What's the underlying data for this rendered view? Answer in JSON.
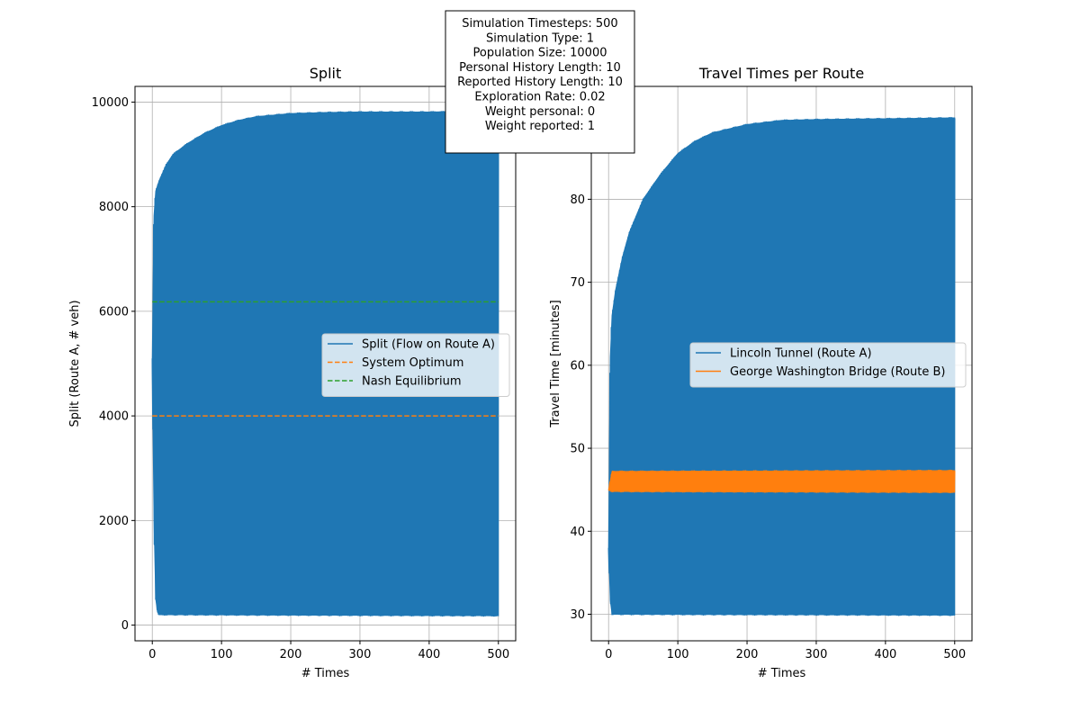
{
  "info_box": {
    "lines": [
      "Simulation Timesteps: 500",
      "Simulation Type: 1",
      "Population Size: 10000",
      "Personal History Length: 10",
      "Reported History Length: 10",
      "Exploration Rate: 0.02",
      "Weight personal: 0",
      "Weight reported: 1"
    ]
  },
  "colors": {
    "blue": "#1f77b4",
    "orange": "#ff7f0e",
    "green": "#2ca02c",
    "grid": "#b0b0b0"
  },
  "chart_data": [
    {
      "type": "line",
      "title": "Split",
      "xlabel": "# Times",
      "ylabel": "Split (Route A, # veh)",
      "xlim": [
        -25,
        525
      ],
      "ylim": [
        -300,
        10300
      ],
      "xticks": [
        0,
        100,
        200,
        300,
        400,
        500
      ],
      "yticks": [
        0,
        2000,
        4000,
        6000,
        8000,
        10000
      ],
      "grid": true,
      "legend_position": "center-right",
      "oscillating_series": {
        "name": "Split (Flow on Route A)",
        "x_range": [
          0,
          500
        ],
        "upper_envelope": [
          [
            0,
            5100
          ],
          [
            1,
            7300
          ],
          [
            3,
            8000
          ],
          [
            5,
            8300
          ],
          [
            10,
            8500
          ],
          [
            20,
            8800
          ],
          [
            30,
            9000
          ],
          [
            50,
            9200
          ],
          [
            75,
            9400
          ],
          [
            100,
            9550
          ],
          [
            125,
            9650
          ],
          [
            150,
            9720
          ],
          [
            200,
            9780
          ],
          [
            250,
            9800
          ],
          [
            300,
            9810
          ],
          [
            400,
            9810
          ],
          [
            500,
            9820
          ]
        ],
        "lower_envelope": [
          [
            0,
            5000
          ],
          [
            2,
            2500
          ],
          [
            4,
            600
          ],
          [
            8,
            200
          ],
          [
            500,
            180
          ]
        ]
      },
      "reference_lines": [
        {
          "name": "System Optimum",
          "value": 4000,
          "style": "dashed",
          "color_key": "orange"
        },
        {
          "name": "Nash Equilibrium",
          "value": 6180,
          "style": "dashed",
          "color_key": "green"
        }
      ],
      "legend": [
        "Split (Flow on Route A)",
        "System Optimum",
        "Nash Equilibrium"
      ]
    },
    {
      "type": "line",
      "title": "Travel Times per Route",
      "xlabel": "# Times",
      "ylabel": "Travel Time [minutes]",
      "xlim": [
        -25,
        525
      ],
      "ylim": [
        26.8,
        93.6
      ],
      "xticks": [
        0,
        100,
        200,
        300,
        400,
        500
      ],
      "yticks": [
        30,
        40,
        50,
        60,
        70,
        80
      ],
      "grid": true,
      "legend_position": "center-right",
      "series": [
        {
          "name": "Lincoln Tunnel (Route A)",
          "color_key": "blue",
          "x_range": [
            0,
            500
          ],
          "upper_envelope": [
            [
              0,
              38
            ],
            [
              1,
              55
            ],
            [
              3,
              63
            ],
            [
              5,
              66
            ],
            [
              10,
              69
            ],
            [
              20,
              73
            ],
            [
              30,
              76
            ],
            [
              50,
              80
            ],
            [
              75,
              83
            ],
            [
              100,
              85.5
            ],
            [
              125,
              87
            ],
            [
              150,
              88
            ],
            [
              200,
              89
            ],
            [
              250,
              89.5
            ],
            [
              300,
              89.6
            ],
            [
              400,
              89.7
            ],
            [
              500,
              89.8
            ]
          ],
          "lower_envelope": [
            [
              0,
              38
            ],
            [
              2,
              32
            ],
            [
              5,
              30
            ],
            [
              500,
              29.9
            ]
          ]
        },
        {
          "name": "George Washington Bridge (Route B)",
          "color_key": "orange",
          "x_range": [
            0,
            500
          ],
          "upper_envelope": [
            [
              0,
              45
            ],
            [
              5,
              47.2
            ],
            [
              500,
              47.3
            ]
          ],
          "lower_envelope": [
            [
              0,
              45
            ],
            [
              5,
              44.8
            ],
            [
              500,
              44.7
            ]
          ]
        }
      ],
      "legend": [
        "Lincoln Tunnel (Route A)",
        "George Washington Bridge (Route B)"
      ]
    }
  ]
}
